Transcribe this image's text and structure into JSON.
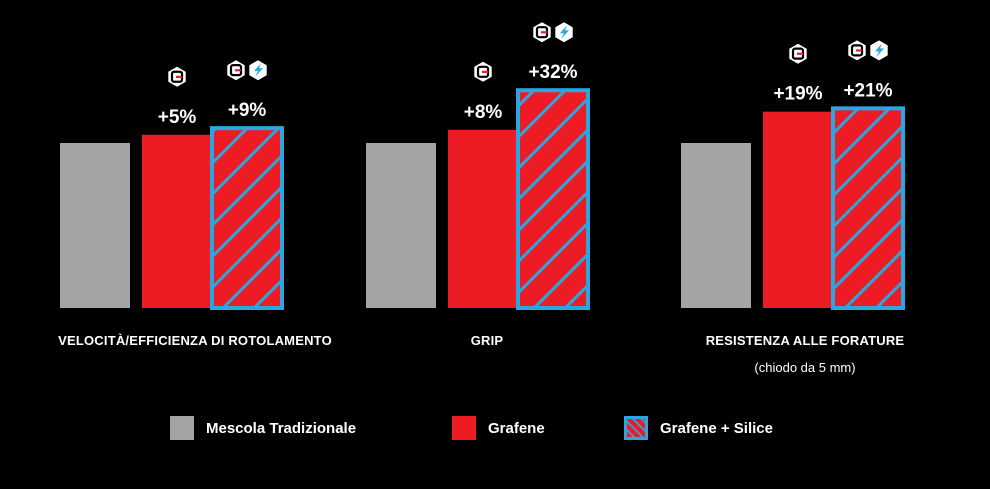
{
  "chart_data": {
    "type": "bar",
    "categories": [
      "VELOCITÀ/EFFICIENZA DI ROTOLAMENTO",
      "GRIP",
      "RESISTENZA ALLE FORATURE"
    ],
    "category_subtitles": [
      "",
      "",
      "(chiodo da 5 mm)"
    ],
    "series": [
      {
        "name": "Mescola Tradizionale",
        "values": [
          100,
          100,
          100
        ],
        "labels": [
          "",
          "",
          ""
        ],
        "color": "#a3a4a6",
        "pattern": "solid",
        "icon": ""
      },
      {
        "name": "Grafene",
        "values": [
          105,
          108,
          119
        ],
        "labels": [
          "+5%",
          "+8%",
          "+19%"
        ],
        "color": "#ed1c24",
        "pattern": "solid",
        "icon": "graphene-logo-icon"
      },
      {
        "name": "Grafene + Silice",
        "values": [
          109,
          132,
          121
        ],
        "labels": [
          "+9%",
          "+32%",
          "+21%"
        ],
        "color": "#ed1c24",
        "hatch_color": "#2aa7e0",
        "pattern": "hatched",
        "icon": "graphene-silica-logo-icon"
      }
    ],
    "grid": false,
    "axes_visible": false,
    "legend_position": "bottom"
  },
  "legend": [
    {
      "label": "Mescola Tradizionale"
    },
    {
      "label": "Grafene"
    },
    {
      "label": "Grafene + Silice"
    }
  ]
}
